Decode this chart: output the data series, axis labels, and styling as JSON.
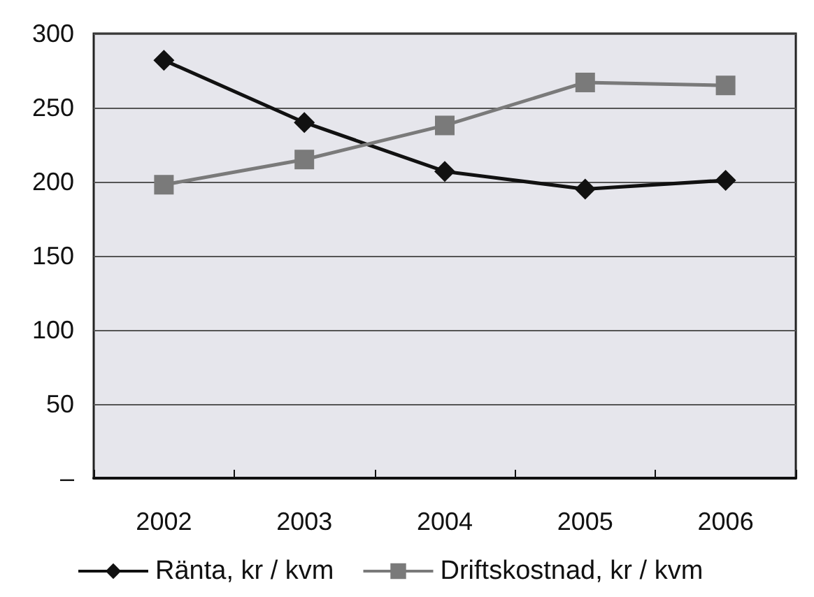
{
  "chart_data": {
    "type": "line",
    "categories": [
      "2002",
      "2003",
      "2004",
      "2005",
      "2006"
    ],
    "series": [
      {
        "name": "Ränta, kr / kvm",
        "color": "#111111",
        "marker": "diamond",
        "values": [
          282,
          240,
          207,
          195,
          201
        ]
      },
      {
        "name": "Driftskostnad, kr / kvm",
        "color": "#7a7a7a",
        "marker": "square",
        "values": [
          198,
          215,
          238,
          267,
          265
        ]
      }
    ],
    "ylim": [
      0,
      300
    ],
    "yticks": [
      {
        "value": 0,
        "label": "–"
      },
      50,
      100,
      150,
      200,
      250,
      300
    ],
    "grid": "y",
    "legend": "bottom",
    "line_style": "solid"
  }
}
